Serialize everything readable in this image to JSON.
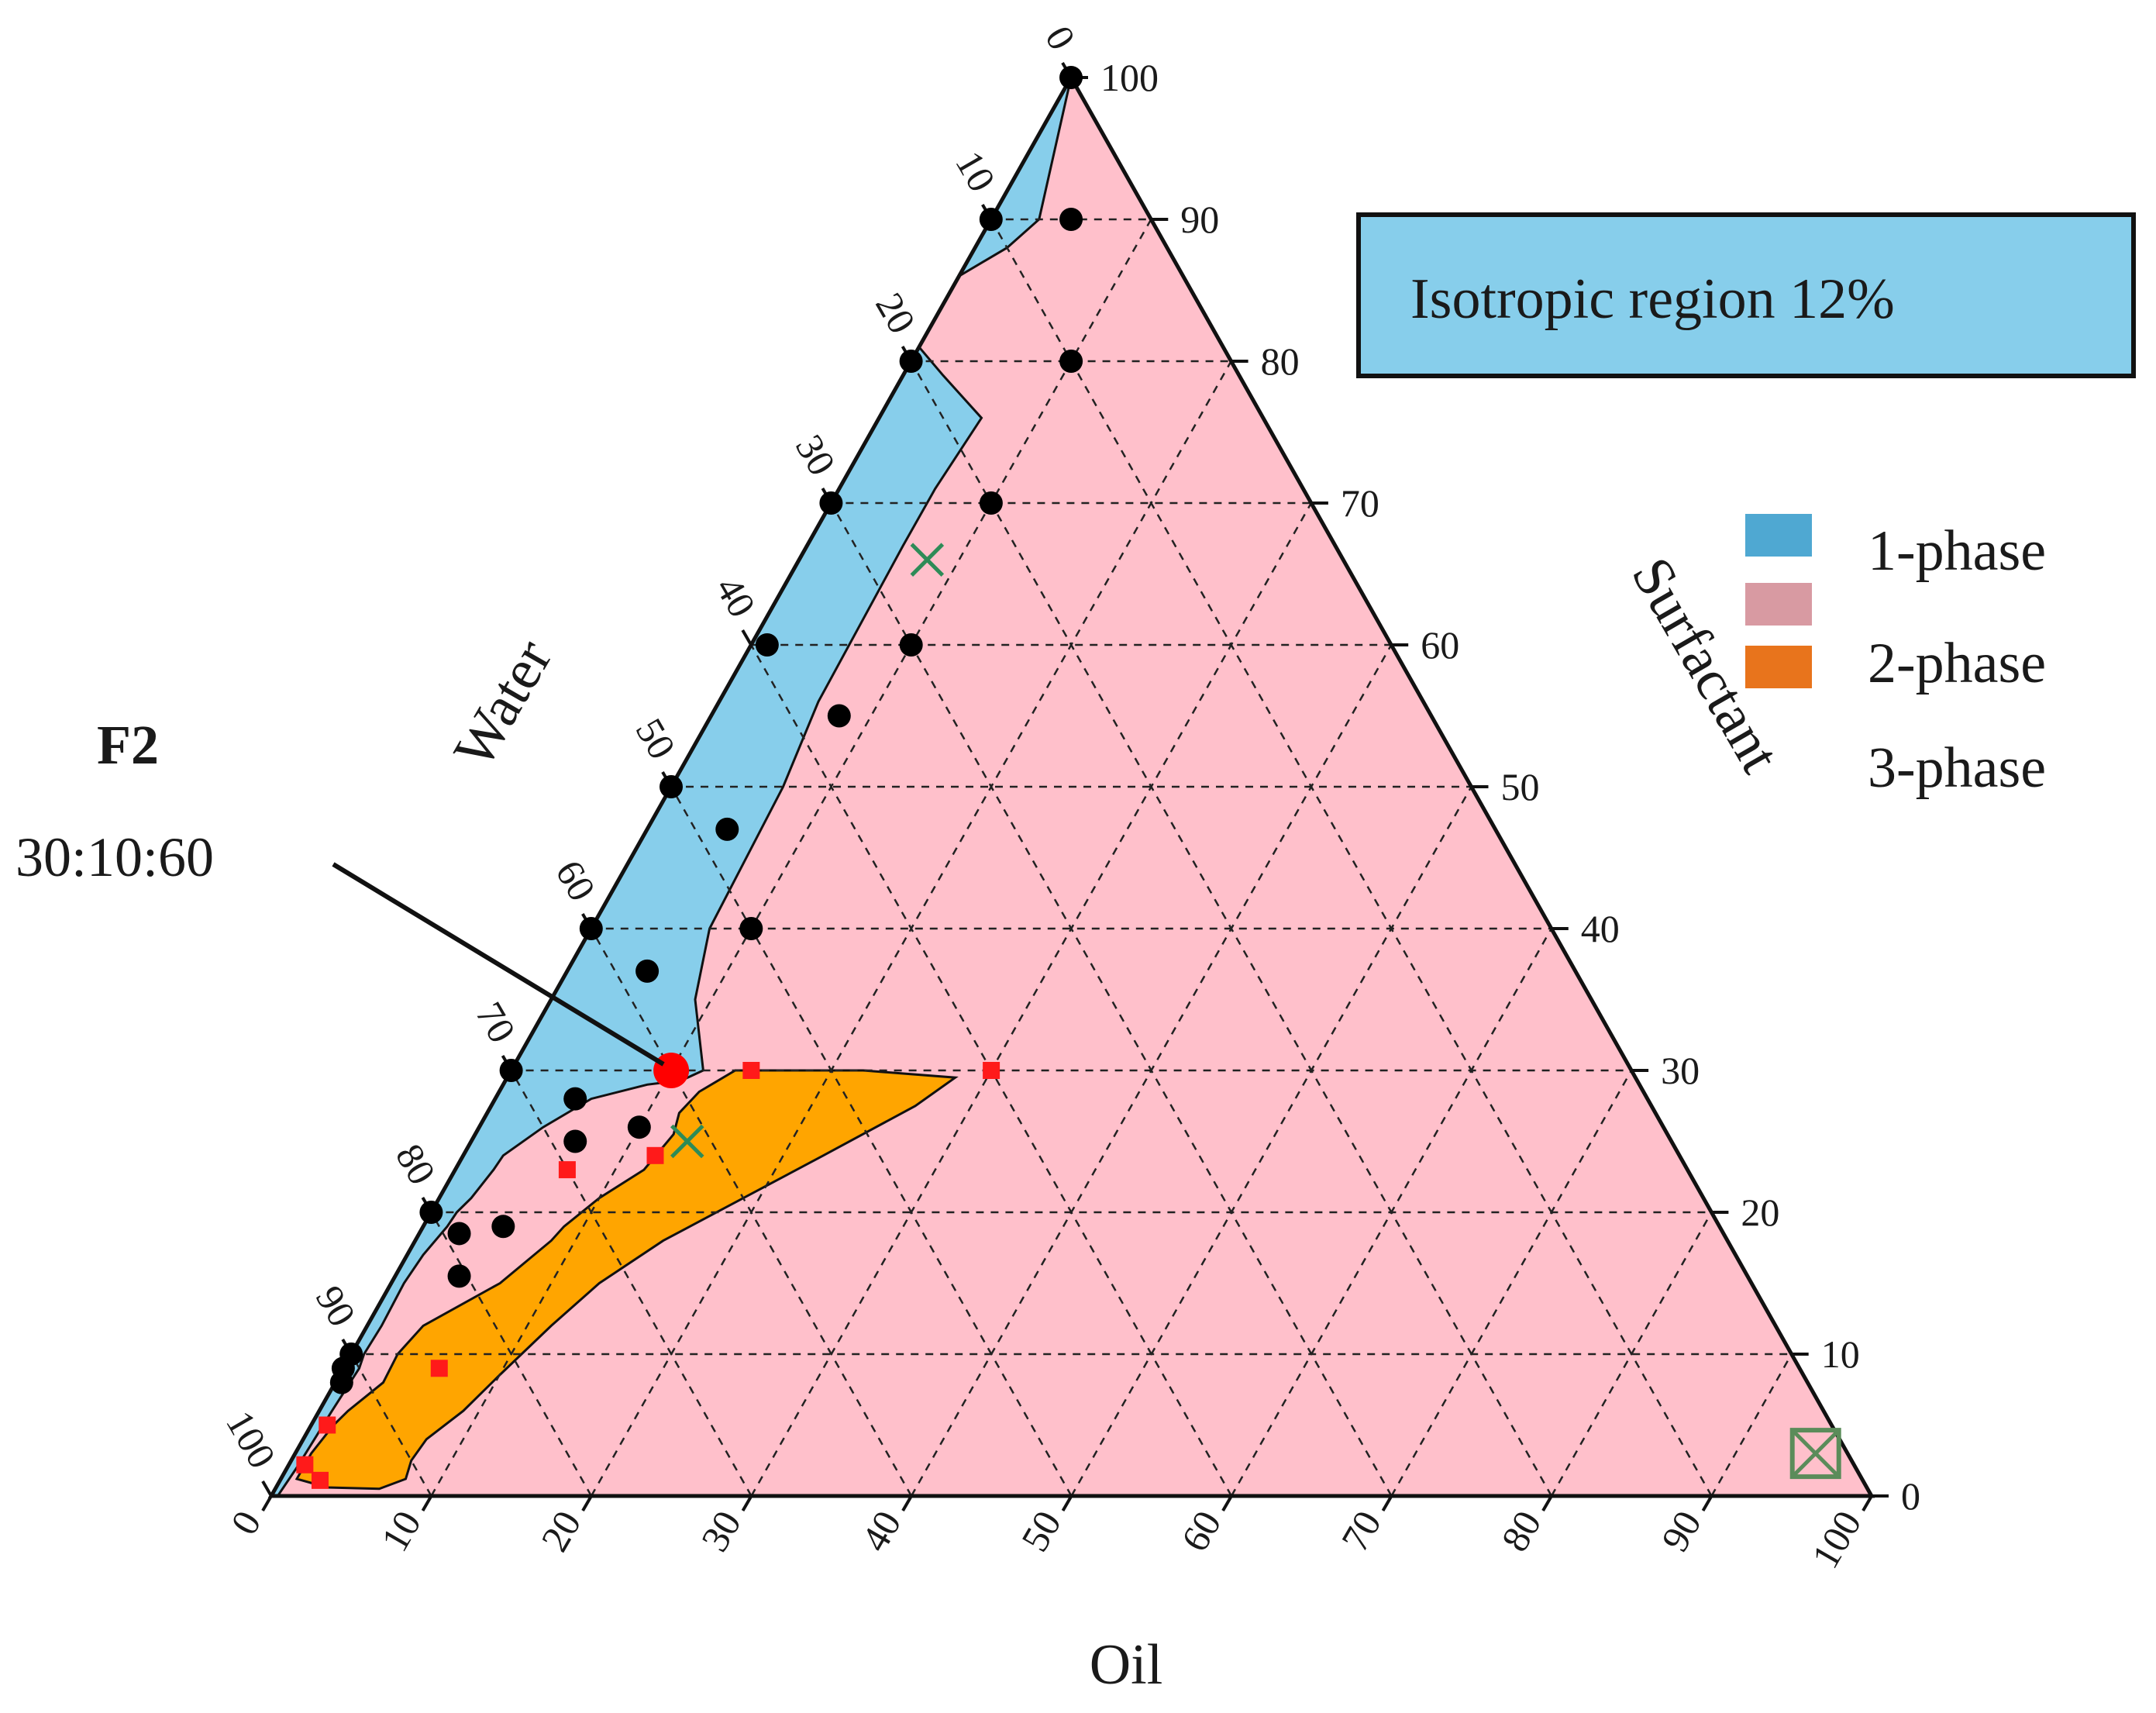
{
  "chart_data": {
    "type": "ternary",
    "axes": {
      "bottom": {
        "title": "Oil",
        "ticks": [
          "0",
          "10",
          "20",
          "30",
          "40",
          "50",
          "60",
          "70",
          "80",
          "90",
          "100"
        ]
      },
      "right": {
        "title": "Surfactant",
        "ticks": [
          "0",
          "10",
          "20",
          "30",
          "40",
          "50",
          "60",
          "70",
          "80",
          "90",
          "100"
        ]
      },
      "left": {
        "title": "Water",
        "ticks": [
          "0",
          "10",
          "20",
          "30",
          "40",
          "50",
          "60",
          "70",
          "80",
          "90",
          "100"
        ]
      }
    },
    "grid": true,
    "legend": {
      "placement": "right",
      "entries": [
        {
          "label": "1-phase",
          "color": "#4fa8d2"
        },
        {
          "label": "",
          "color": "#d89aa2"
        },
        {
          "label": "2-phase",
          "color": "#e8741c"
        },
        {
          "label": "3-phase",
          "color": ""
        }
      ]
    },
    "isotropic_box": {
      "text": "Isotropic region 12%",
      "color": "#87ceeb"
    },
    "annotation": {
      "title": "F2",
      "value": "30:10:60",
      "point": {
        "oil": 10,
        "surfactant": 30
      }
    },
    "regions": [
      {
        "name": "1-phase",
        "color": "#87ceeb",
        "points": [
          [
            0,
            100
          ],
          [
            3,
            90
          ],
          [
            2,
            88
          ],
          [
            0,
            86
          ],
          [
            0,
            81
          ],
          [
            2.5,
            79
          ],
          [
            6.4,
            76
          ],
          [
            6,
            71
          ],
          [
            6,
            67
          ],
          [
            6.2,
            56
          ],
          [
            7,
            50
          ],
          [
            7.4,
            40
          ],
          [
            9,
            35
          ],
          [
            12,
            30
          ],
          [
            11,
            29.3
          ],
          [
            9,
            29
          ],
          [
            6,
            28
          ],
          [
            4,
            26
          ],
          [
            2.5,
            24
          ],
          [
            2.4,
            23
          ],
          [
            2,
            21
          ],
          [
            1.6,
            20
          ],
          [
            1.5,
            19
          ],
          [
            1,
            17
          ],
          [
            0.8,
            15
          ],
          [
            0.9,
            12
          ],
          [
            0.8,
            10
          ],
          [
            1,
            9
          ],
          [
            0.8,
            6
          ],
          [
            0.7,
            4
          ],
          [
            0.6,
            2
          ],
          [
            0.4,
            0
          ],
          [
            0,
            0
          ]
        ]
      },
      {
        "name": "2-phase",
        "color": "#ffa500",
        "points": [
          [
            22,
            30
          ],
          [
            14,
            30
          ],
          [
            12.5,
            28.5
          ],
          [
            12,
            27
          ],
          [
            12.4,
            25.5
          ],
          [
            11.8,
            23
          ],
          [
            10,
            21
          ],
          [
            8.8,
            19
          ],
          [
            8.5,
            18
          ],
          [
            6.8,
            15
          ],
          [
            3.5,
            12
          ],
          [
            2.9,
            10
          ],
          [
            3,
            8
          ],
          [
            1.8,
            6
          ],
          [
            1.4,
            5
          ],
          [
            1,
            3
          ],
          [
            1,
            1.2
          ],
          [
            3.2,
            0.6
          ],
          [
            6.5,
            0.5
          ],
          [
            7.8,
            1.2
          ],
          [
            7.5,
            2.5
          ],
          [
            7.7,
            4
          ],
          [
            9,
            6
          ],
          [
            10,
            8.5
          ],
          [
            11.5,
            12
          ],
          [
            13,
            15
          ],
          [
            15.5,
            18
          ],
          [
            19,
            21
          ],
          [
            22.5,
            24
          ],
          [
            26.5,
            27.5
          ],
          [
            28,
            29.5
          ]
        ]
      }
    ],
    "series": [
      {
        "marker": "black-dot",
        "points": [
          [
            0,
            100
          ],
          [
            5,
            90
          ],
          [
            0,
            90
          ],
          [
            10,
            80
          ],
          [
            0,
            80
          ],
          [
            10,
            70
          ],
          [
            0,
            70
          ],
          [
            10,
            60
          ],
          [
            1,
            60
          ],
          [
            8,
            55
          ],
          [
            0,
            50
          ],
          [
            5,
            47
          ],
          [
            0,
            40
          ],
          [
            10,
            40
          ],
          [
            5,
            37
          ],
          [
            0,
            30
          ],
          [
            10,
            30
          ],
          [
            5,
            28
          ],
          [
            0,
            20
          ],
          [
            10,
            26
          ],
          [
            6.5,
            25
          ],
          [
            5,
            19
          ],
          [
            2.5,
            18.5
          ],
          [
            4,
            15.5
          ],
          [
            0,
            10
          ],
          [
            0,
            9
          ],
          [
            0.4,
            8
          ]
        ]
      },
      {
        "marker": "red-square",
        "points": [
          [
            30,
            30
          ],
          [
            15,
            30
          ],
          [
            12,
            24
          ],
          [
            7,
            23
          ],
          [
            6,
            9
          ],
          [
            1,
            5
          ],
          [
            1,
            2.2
          ],
          [
            2.5,
            1.1
          ]
        ]
      },
      {
        "marker": "red-dot-large",
        "points": [
          [
            10,
            30
          ]
        ]
      },
      {
        "marker": "green-cross",
        "points": [
          [
            8,
            66
          ],
          [
            13.5,
            25
          ]
        ]
      },
      {
        "marker": "green-box-cross",
        "points": [
          [
            95,
            3
          ]
        ]
      }
    ]
  }
}
